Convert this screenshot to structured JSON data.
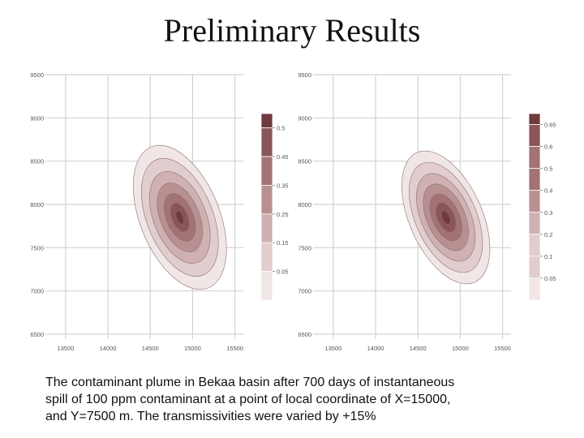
{
  "title": "Preliminary Results",
  "caption": {
    "line1": "The contaminant plume in Bekaa basin after 700 days of instantaneous",
    "line2": "spill of 100 ppm contaminant at a point of local coordinate of X=15000,",
    "line3": "and Y=7500  m. The transmissivities were varied by +15%"
  },
  "colors": {
    "ramp": [
      "#f1e6e6",
      "#e2cdce",
      "#cfb1b2",
      "#b99091",
      "#a27274",
      "#8a5558",
      "#6e3a3e"
    ],
    "contour_line": "#8a7070",
    "grid": "#d2d2d2"
  },
  "chart_data": [
    {
      "type": "contour",
      "x_ticks": [
        "13500",
        "14000",
        "14500",
        "15000",
        "15500"
      ],
      "y_ticks": [
        "9500",
        "9000",
        "8500",
        "8000",
        "7500",
        "7000",
        "6500"
      ],
      "xlim": [
        13300,
        15600
      ],
      "ylim": [
        6500,
        9500
      ],
      "grid": true,
      "plume_center": {
        "x": 14850,
        "y": 7850
      },
      "contour_extents": [
        {
          "rx": 470,
          "ry": 880
        },
        {
          "rx": 390,
          "ry": 720
        },
        {
          "rx": 310,
          "ry": 560
        },
        {
          "rx": 230,
          "ry": 420
        },
        {
          "rx": 160,
          "ry": 290
        },
        {
          "rx": 95,
          "ry": 175
        },
        {
          "rx": 40,
          "ry": 80
        }
      ],
      "tilt_deg": -22,
      "colorbar": {
        "levels": [
          "0.5",
          "0.45",
          "0.35",
          "0.25",
          "0.15",
          "0.05"
        ],
        "placement": "right"
      }
    },
    {
      "type": "contour",
      "x_ticks": [
        "13500",
        "14000",
        "14500",
        "15000",
        "15500"
      ],
      "y_ticks": [
        "9500",
        "9000",
        "8500",
        "8000",
        "7500",
        "7000",
        "6500"
      ],
      "xlim": [
        13300,
        15600
      ],
      "ylim": [
        6500,
        9500
      ],
      "grid": true,
      "plume_center": {
        "x": 14830,
        "y": 7850
      },
      "contour_extents": [
        {
          "rx": 430,
          "ry": 820
        },
        {
          "rx": 360,
          "ry": 680
        },
        {
          "rx": 290,
          "ry": 540
        },
        {
          "rx": 225,
          "ry": 410
        },
        {
          "rx": 160,
          "ry": 290
        },
        {
          "rx": 100,
          "ry": 180
        },
        {
          "rx": 45,
          "ry": 85
        }
      ],
      "tilt_deg": -24,
      "colorbar": {
        "levels": [
          "0.65",
          "0.6",
          "0.5",
          "0.4",
          "0.3",
          "0.2",
          "0.1",
          "0.05"
        ],
        "placement": "right"
      }
    }
  ]
}
